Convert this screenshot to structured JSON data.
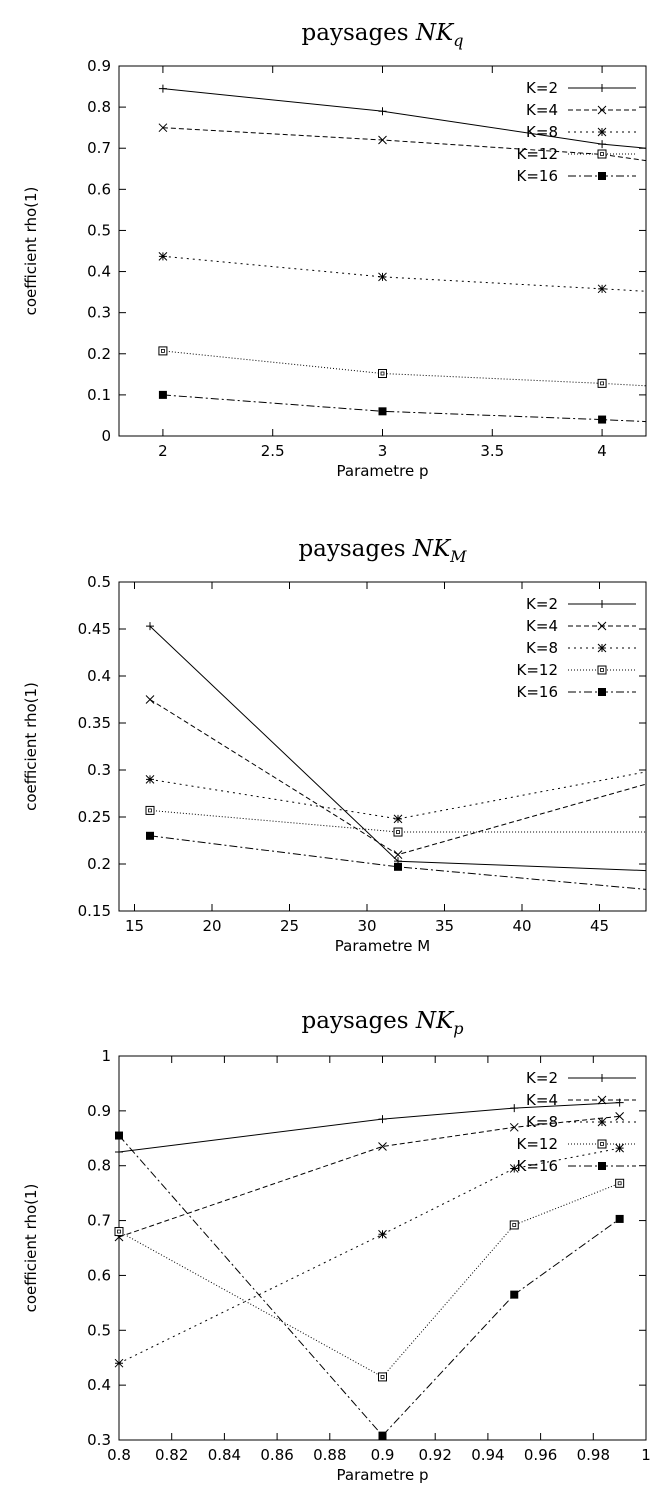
{
  "chart_data": [
    {
      "type": "line",
      "title": "paysages ",
      "title_math": "NK",
      "title_sub": "q",
      "xlabel": "Parametre p",
      "ylabel": "coefficient rho(1)",
      "xlim": [
        1.8,
        4.2
      ],
      "ylim": [
        0,
        0.9
      ],
      "xticks": [
        2,
        2.5,
        3,
        3.5,
        4
      ],
      "xtick_labels": [
        "2",
        "2.5",
        "3",
        "3.5",
        "4"
      ],
      "yticks": [
        0,
        0.1,
        0.2,
        0.3,
        0.4,
        0.5,
        0.6,
        0.7,
        0.8,
        0.9
      ],
      "ytick_labels": [
        "0",
        "0.1",
        "0.2",
        "0.3",
        "0.4",
        "0.5",
        "0.6",
        "0.7",
        "0.8",
        "0.9"
      ],
      "legend_position": "top-right",
      "grid": false,
      "series": [
        {
          "name": "K=2",
          "points": [
            [
              2,
              0.845
            ],
            [
              3,
              0.79
            ],
            [
              4,
              0.71
            ],
            [
              4.2,
              0.7
            ]
          ]
        },
        {
          "name": "K=4",
          "points": [
            [
              2,
              0.75
            ],
            [
              3,
              0.72
            ],
            [
              4,
              0.685
            ],
            [
              4.2,
              0.67
            ]
          ]
        },
        {
          "name": "K=8",
          "points": [
            [
              2,
              0.437
            ],
            [
              3,
              0.387
            ],
            [
              4,
              0.358
            ],
            [
              4.2,
              0.352
            ]
          ]
        },
        {
          "name": "K=12",
          "points": [
            [
              2,
              0.207
            ],
            [
              3,
              0.152
            ],
            [
              4,
              0.128
            ],
            [
              4.2,
              0.122
            ]
          ]
        },
        {
          "name": "K=16",
          "points": [
            [
              2,
              0.1
            ],
            [
              3,
              0.06
            ],
            [
              4,
              0.04
            ],
            [
              4.2,
              0.035
            ]
          ]
        }
      ]
    },
    {
      "type": "line",
      "title": "paysages ",
      "title_math": "NK",
      "title_sub": "M",
      "xlabel": "Parametre M",
      "ylabel": "coefficient rho(1)",
      "xlim": [
        14,
        48
      ],
      "ylim": [
        0.15,
        0.5
      ],
      "xticks": [
        15,
        20,
        25,
        30,
        35,
        40,
        45
      ],
      "xtick_labels": [
        "15",
        "20",
        "25",
        "30",
        "35",
        "40",
        "45"
      ],
      "yticks": [
        0.15,
        0.2,
        0.25,
        0.3,
        0.35,
        0.4,
        0.45,
        0.5
      ],
      "ytick_labels": [
        "0.15",
        "0.2",
        "0.25",
        "0.3",
        "0.35",
        "0.4",
        "0.45",
        "0.5"
      ],
      "legend_position": "top-right",
      "grid": false,
      "series": [
        {
          "name": "K=2",
          "points": [
            [
              16,
              0.453
            ],
            [
              32,
              0.203
            ],
            [
              48,
              0.193
            ]
          ]
        },
        {
          "name": "K=4",
          "points": [
            [
              16,
              0.375
            ],
            [
              32,
              0.21
            ],
            [
              48,
              0.285
            ]
          ]
        },
        {
          "name": "K=8",
          "points": [
            [
              16,
              0.29
            ],
            [
              32,
              0.248
            ],
            [
              48,
              0.298
            ]
          ]
        },
        {
          "name": "K=12",
          "points": [
            [
              16,
              0.257
            ],
            [
              32,
              0.234
            ],
            [
              48,
              0.234
            ]
          ]
        },
        {
          "name": "K=16",
          "points": [
            [
              16,
              0.23
            ],
            [
              32,
              0.197
            ],
            [
              48,
              0.173
            ]
          ]
        }
      ]
    },
    {
      "type": "line",
      "title": "paysages ",
      "title_math": "NK",
      "title_sub": "p",
      "xlabel": "Parametre p",
      "ylabel": "coefficient rho(1)",
      "xlim": [
        0.8,
        1.0
      ],
      "ylim": [
        0.3,
        1.0
      ],
      "xticks": [
        0.8,
        0.82,
        0.84,
        0.86,
        0.88,
        0.9,
        0.92,
        0.94,
        0.96,
        0.98,
        1.0
      ],
      "xtick_labels": [
        "0.8",
        "0.82",
        "0.84",
        "0.86",
        "0.88",
        "0.9",
        "0.92",
        "0.94",
        "0.96",
        "0.98",
        "1"
      ],
      "yticks": [
        0.3,
        0.4,
        0.5,
        0.6,
        0.7,
        0.8,
        0.9,
        1.0
      ],
      "ytick_labels": [
        "0.3",
        "0.4",
        "0.5",
        "0.6",
        "0.7",
        "0.8",
        "0.9",
        "1"
      ],
      "legend_position": "top-right",
      "grid": false,
      "series": [
        {
          "name": "K=2",
          "points": [
            [
              0.8,
              0.825
            ],
            [
              0.9,
              0.885
            ],
            [
              0.95,
              0.905
            ],
            [
              0.99,
              0.915
            ]
          ]
        },
        {
          "name": "K=4",
          "points": [
            [
              0.8,
              0.67
            ],
            [
              0.9,
              0.835
            ],
            [
              0.95,
              0.87
            ],
            [
              0.99,
              0.89
            ]
          ]
        },
        {
          "name": "K=8",
          "points": [
            [
              0.8,
              0.44
            ],
            [
              0.9,
              0.675
            ],
            [
              0.95,
              0.795
            ],
            [
              0.99,
              0.832
            ]
          ]
        },
        {
          "name": "K=12",
          "points": [
            [
              0.8,
              0.68
            ],
            [
              0.9,
              0.415
            ],
            [
              0.95,
              0.692
            ],
            [
              0.99,
              0.768
            ]
          ]
        },
        {
          "name": "K=16",
          "points": [
            [
              0.8,
              0.855
            ],
            [
              0.9,
              0.308
            ],
            [
              0.95,
              0.565
            ],
            [
              0.99,
              0.703
            ]
          ]
        }
      ]
    }
  ]
}
